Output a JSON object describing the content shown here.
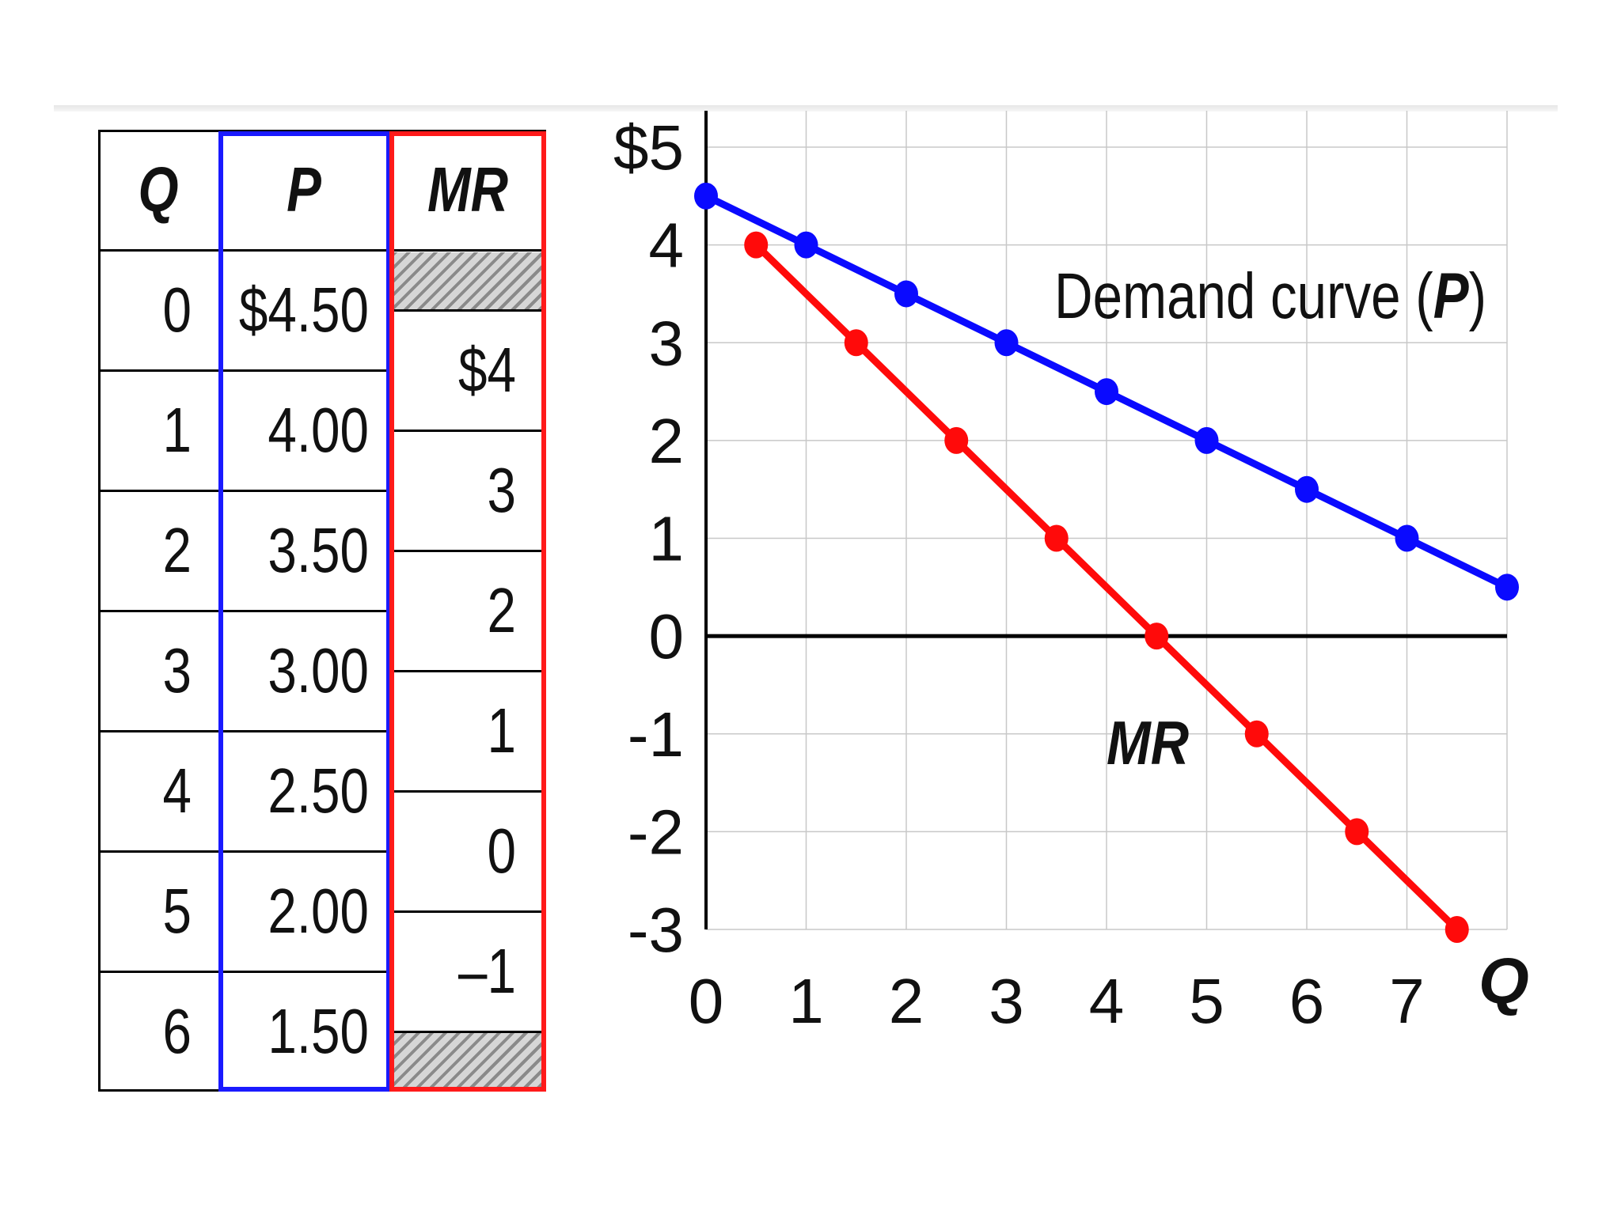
{
  "table": {
    "headers": {
      "q": "Q",
      "p": "P",
      "mr": "MR"
    },
    "q": [
      "0",
      "1",
      "2",
      "3",
      "4",
      "5",
      "6"
    ],
    "p": [
      "$4.50",
      "4.00",
      "3.50",
      "3.00",
      "2.50",
      "2.00",
      "1.50"
    ],
    "mr": [
      "$4",
      "3",
      "2",
      "1",
      "0",
      "–1"
    ],
    "colors": {
      "p_border": "#1a1aff",
      "mr_border": "#ff1a1a"
    }
  },
  "chart_data": {
    "type": "line",
    "xlabel": "Q",
    "x_ticks": [
      "0",
      "1",
      "2",
      "3",
      "4",
      "5",
      "6",
      "7"
    ],
    "y_ticks": [
      "$5",
      "4",
      "3",
      "2",
      "1",
      "0",
      "-1",
      "-2",
      "-3"
    ],
    "xlim": [
      0,
      8
    ],
    "ylim": [
      -3,
      5
    ],
    "grid": true,
    "series": [
      {
        "name": "Demand curve (P)",
        "label_prefix": "Demand curve (",
        "label_var": "P",
        "label_suffix": ")",
        "color": "#0a0aff",
        "x": [
          0,
          1,
          2,
          3,
          4,
          5,
          6,
          7,
          8
        ],
        "y": [
          4.5,
          4.0,
          3.5,
          3.0,
          2.5,
          2.0,
          1.5,
          1.0,
          0.5
        ]
      },
      {
        "name": "MR",
        "color": "#ff0a0a",
        "x": [
          0.5,
          1.5,
          2.5,
          3.5,
          4.5,
          5.5,
          6.5,
          7.5
        ],
        "y": [
          4,
          3,
          2,
          1,
          0,
          -1,
          -2,
          -3
        ]
      }
    ]
  }
}
